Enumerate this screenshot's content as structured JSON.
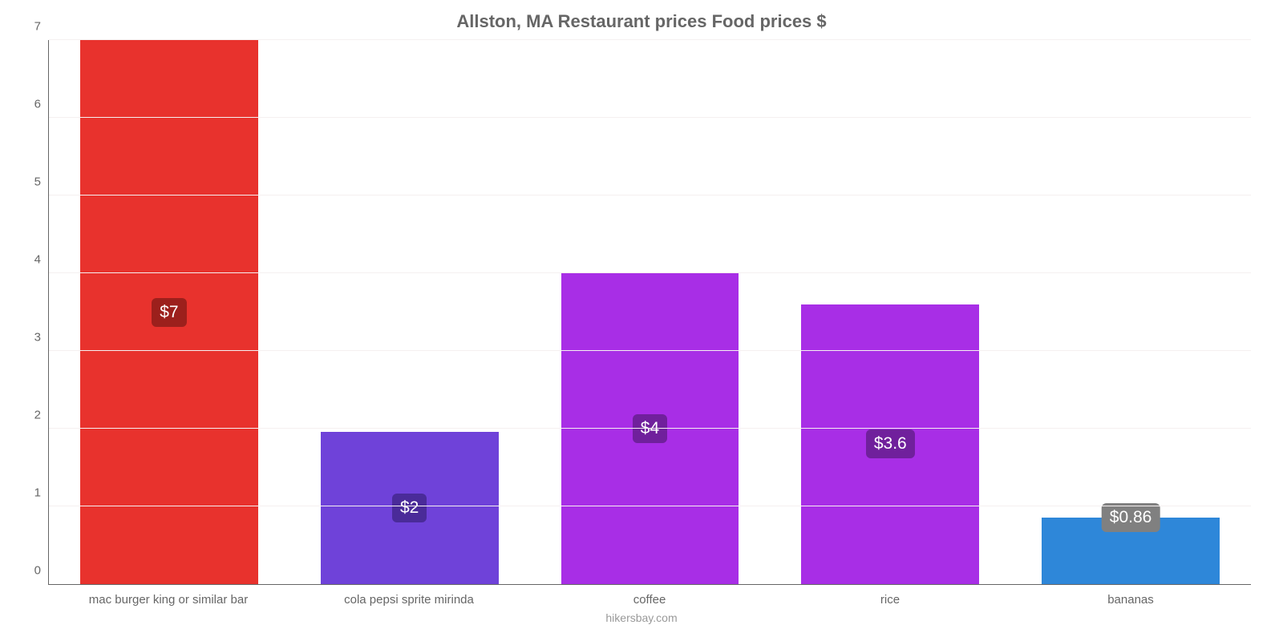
{
  "chart": {
    "type": "bar",
    "title": "Allston, MA Restaurant prices Food prices $",
    "title_fontsize": 22,
    "title_color": "#666666",
    "background_color": "#ffffff",
    "grid_color": "#f5f0f0",
    "axis_color": "#666666",
    "credit": "hikersbay.com",
    "credit_fontsize": 14,
    "credit_color": "#999999",
    "ylim": [
      0,
      7
    ],
    "ytick_step": 1,
    "yticks": [
      "0",
      "1",
      "2",
      "3",
      "4",
      "5",
      "6",
      "7"
    ],
    "ytick_fontsize": 15,
    "ytick_color": "#666666",
    "xlabel_fontsize": 15,
    "xlabel_color": "#666666",
    "bar_width_pct": 74,
    "value_badge_fontsize": 21,
    "value_badge_radius": 6,
    "categories": [
      "mac burger king or similar bar",
      "cola pepsi sprite mirinda",
      "coffee",
      "rice",
      "bananas"
    ],
    "values": [
      7,
      1.96,
      4,
      3.6,
      0.86
    ],
    "value_labels": [
      "$7",
      "$2",
      "$4",
      "$3.6",
      "$0.86"
    ],
    "bar_colors": [
      "#e8322d",
      "#6f42d9",
      "#a82ee6",
      "#a82ee6",
      "#2e87d9"
    ],
    "badge_colors": [
      "#9c201c",
      "#4a2b99",
      "#70209c",
      "#70209c",
      "#808080"
    ],
    "badge_offsets": [
      0,
      0,
      0,
      0,
      1
    ]
  }
}
